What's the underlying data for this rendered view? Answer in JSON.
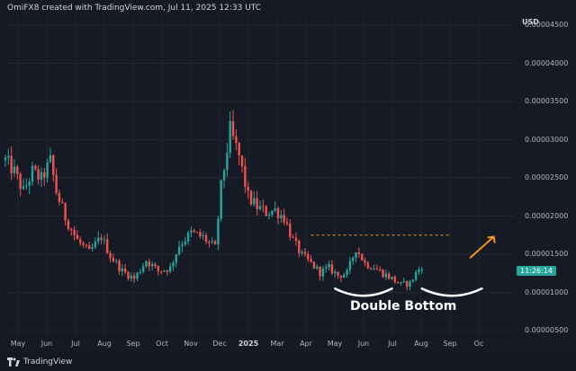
{
  "header": {
    "text": "OmiFX8 created with TradingView.com, Jul 11, 2025 12:33 UTC"
  },
  "footer": {
    "brand": "TradingView"
  },
  "annotation": {
    "pattern_label": "Double Bottom"
  },
  "current_price": {
    "time": "11:26:14"
  },
  "colors": {
    "bg": "#161a25",
    "up": "#26a69a",
    "down": "#ef5350",
    "arrow": "#f7931a",
    "grid": "#222634"
  },
  "chart_data": {
    "type": "candlestick",
    "currency": "USD",
    "y_ticks": [
      "0.00004500",
      "0.00004000",
      "0.00003500",
      "0.00003000",
      "0.00002500",
      "0.00002000",
      "0.00001500",
      "0.00001000",
      "0.00000500"
    ],
    "x_ticks": [
      "May",
      "Jun",
      "Jul",
      "Aug",
      "Sep",
      "Oct",
      "Nov",
      "Dec",
      "2025",
      "Mar",
      "Apr",
      "May",
      "Jun",
      "Jul",
      "Aug",
      "Sep",
      "Oc"
    ],
    "ylim": [
      5e-06,
      4.5e-05
    ],
    "close_path": [
      [
        0,
        2.73e-05
      ],
      [
        3,
        2.58e-05
      ],
      [
        6,
        2.32e-05
      ],
      [
        9,
        2.58e-05
      ],
      [
        12,
        2.48e-05
      ],
      [
        15,
        2.72e-05
      ],
      [
        17,
        2.32e-05
      ],
      [
        20,
        1.98e-05
      ],
      [
        24,
        1.68e-05
      ],
      [
        28,
        1.52e-05
      ],
      [
        32,
        1.73e-05
      ],
      [
        35,
        1.48e-05
      ],
      [
        39,
        1.28e-05
      ],
      [
        43,
        1.18e-05
      ],
      [
        47,
        1.42e-05
      ],
      [
        51,
        1.28e-05
      ],
      [
        55,
        1.32e-05
      ],
      [
        58,
        1.62e-05
      ],
      [
        62,
        1.78e-05
      ],
      [
        66,
        1.72e-05
      ],
      [
        70,
        1.58e-05
      ],
      [
        72,
        2.38e-05
      ],
      [
        75,
        3.12e-05
      ],
      [
        78,
        2.78e-05
      ],
      [
        81,
        2.25e-05
      ],
      [
        84,
        2.12e-05
      ],
      [
        87,
        2.05e-05
      ],
      [
        90,
        2.08e-05
      ],
      [
        93,
        1.98e-05
      ],
      [
        96,
        1.68e-05
      ],
      [
        99,
        1.48e-05
      ],
      [
        102,
        1.38e-05
      ],
      [
        105,
        1.26e-05
      ],
      [
        108,
        1.32e-05
      ],
      [
        111,
        1.22e-05
      ],
      [
        114,
        1.25e-05
      ],
      [
        117,
        1.58e-05
      ],
      [
        120,
        1.38e-05
      ],
      [
        123,
        1.33e-05
      ],
      [
        126,
        1.25e-05
      ],
      [
        129,
        1.18e-05
      ],
      [
        132,
        1.1e-05
      ],
      [
        135,
        1.12e-05
      ],
      [
        137,
        1.25e-05
      ],
      [
        139,
        1.35e-05
      ]
    ],
    "series": [
      {
        "name": "Double Bottom",
        "type": "resistance",
        "level": 1.75e-05
      }
    ]
  },
  "ui": {
    "time_scale": {
      "xmin": 0,
      "xmax": 170
    }
  }
}
